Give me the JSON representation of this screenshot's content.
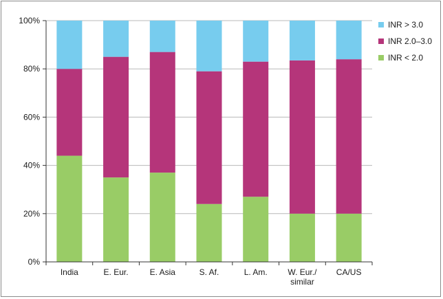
{
  "chart_data": {
    "type": "bar",
    "stacked": true,
    "categories": [
      "India",
      "E. Eur.",
      "E. Asia",
      "S. Af.",
      "L. Am.",
      "W. Eur./similar",
      "CA/US"
    ],
    "category_lines": [
      [
        "India"
      ],
      [
        "E. Eur."
      ],
      [
        "E. Asia"
      ],
      [
        "S. Af."
      ],
      [
        "L. Am."
      ],
      [
        "W. Eur./",
        "similar"
      ],
      [
        "CA/US"
      ]
    ],
    "series": [
      {
        "name": "INR < 2.0",
        "color": "#99cc66",
        "values": [
          44,
          35,
          37,
          24,
          27,
          20,
          20
        ]
      },
      {
        "name": "INR 2.0–3.0",
        "color": "#b5357a",
        "values": [
          36,
          50,
          50,
          55,
          56,
          63.5,
          64
        ]
      },
      {
        "name": "INR > 3.0",
        "color": "#77ccee",
        "values": [
          20,
          15,
          13,
          21,
          17,
          16.5,
          16
        ]
      }
    ],
    "legend_order": [
      "INR > 3.0",
      "INR 2.0–3.0",
      "INR < 2.0"
    ],
    "y_ticks": [
      "0%",
      "20%",
      "40%",
      "60%",
      "80%",
      "100%"
    ],
    "ylim": [
      0,
      100
    ],
    "legend_position": "top-right",
    "grid": true
  }
}
